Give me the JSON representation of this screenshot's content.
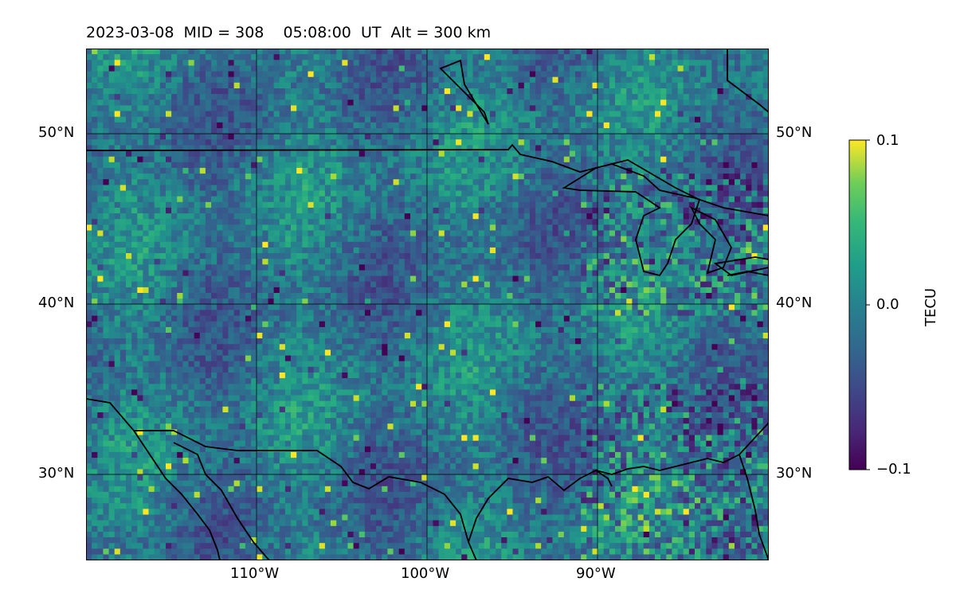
{
  "figure": {
    "title": "2023-03-08  MID = 308    05:08:00  UT  Alt = 300 km"
  },
  "map": {
    "lat_labels": [
      "50°N",
      "40°N",
      "30°N"
    ],
    "lon_labels": [
      "110°W",
      "100°W",
      "90°W"
    ],
    "lon_range": [
      -120,
      -80
    ],
    "lat_range": [
      25,
      55
    ]
  },
  "colorbar": {
    "label": "TECU",
    "ticks": [
      "0.1",
      "0.0",
      "−0.1"
    ],
    "range": [
      -0.1,
      0.1
    ],
    "colormap": "viridis"
  },
  "colors": {
    "low": "#440154",
    "mid": "#21918c",
    "high": "#fde725"
  }
}
